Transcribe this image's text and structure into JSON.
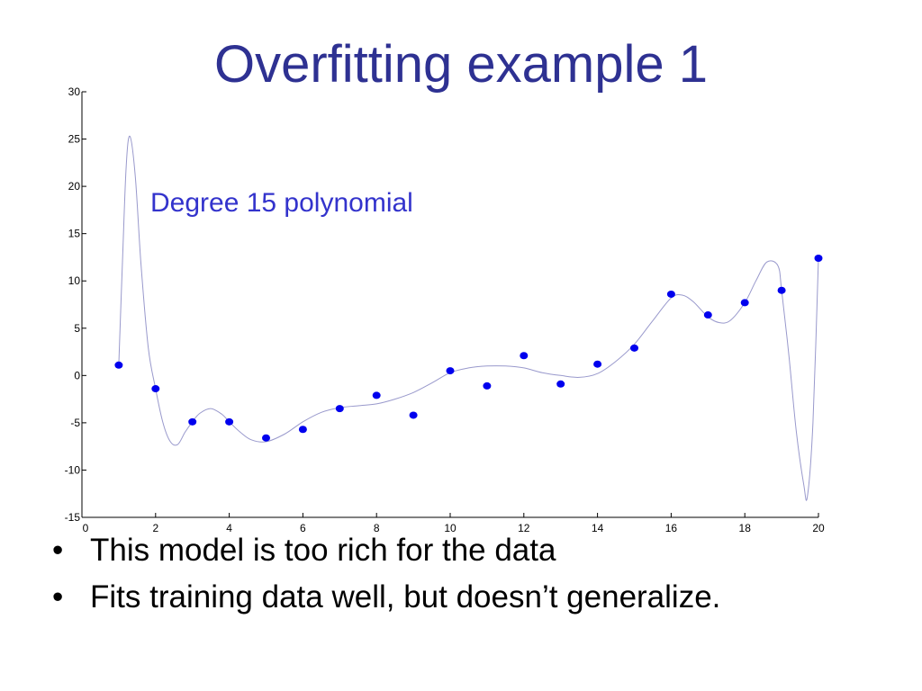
{
  "slide": {
    "title": "Overfitting example 1",
    "bullets": [
      "This model is too rich for the data",
      "Fits training data well, but doesn’t generalize."
    ],
    "bullet_glyph": "•"
  },
  "chart_data": {
    "type": "scatter",
    "annotation": "Degree 15 polynomial",
    "xlim": [
      0,
      20
    ],
    "ylim": [
      -15,
      30
    ],
    "x_ticks": [
      0,
      2,
      4,
      6,
      8,
      10,
      12,
      14,
      16,
      18,
      20
    ],
    "y_ticks": [
      -15,
      -10,
      -5,
      0,
      5,
      10,
      15,
      20,
      25,
      30
    ],
    "grid": false,
    "legend": "none",
    "colors": {
      "points": "#0000ee",
      "fit_curve": "#9999cc",
      "axis": "#000000"
    },
    "series": [
      {
        "kind": "points",
        "x": [
          1,
          2,
          3,
          4,
          5,
          6,
          7,
          8,
          9,
          10,
          11,
          12,
          13,
          14,
          15,
          16,
          17,
          18,
          19,
          20
        ],
        "y": [
          1.1,
          -1.4,
          -4.9,
          -4.9,
          -6.6,
          -5.7,
          -3.5,
          -2.1,
          -4.2,
          0.5,
          -1.1,
          2.1,
          -0.9,
          1.2,
          2.9,
          8.6,
          6.4,
          7.7,
          9.0,
          12.4
        ]
      },
      {
        "kind": "fit-curve",
        "x": [
          1,
          1.1,
          1.2,
          1.3,
          1.45,
          1.6,
          1.8,
          2,
          2.2,
          2.4,
          2.6,
          2.8,
          3,
          3.2,
          3.5,
          3.8,
          4,
          4.3,
          4.6,
          5,
          5.5,
          6,
          6.5,
          7,
          7.5,
          8,
          8.5,
          9,
          9.5,
          10,
          10.5,
          11,
          11.5,
          12,
          12.5,
          13,
          13.5,
          14,
          14.5,
          15,
          15.5,
          16,
          16.3,
          16.6,
          17,
          17.3,
          17.6,
          18,
          18.3,
          18.6,
          18.9,
          19,
          19.2,
          19.4,
          19.6,
          19.7,
          19.85,
          20
        ],
        "y": [
          1.1,
          12,
          22,
          25.3,
          21,
          12,
          3,
          -1.4,
          -5,
          -7,
          -7.3,
          -6,
          -4.9,
          -4.0,
          -3.5,
          -4.1,
          -4.9,
          -6.0,
          -6.8,
          -7.0,
          -6.2,
          -4.9,
          -3.9,
          -3.4,
          -3.2,
          -3.0,
          -2.5,
          -1.8,
          -0.8,
          0.3,
          0.8,
          1.0,
          1.0,
          0.8,
          0.3,
          0.0,
          -0.2,
          0.2,
          1.5,
          3.3,
          5.8,
          8.2,
          8.5,
          7.8,
          6.2,
          5.6,
          5.8,
          7.7,
          10.0,
          12.0,
          11.6,
          9.0,
          2,
          -6,
          -11.5,
          -12.8,
          -5,
          12.4
        ]
      }
    ]
  }
}
